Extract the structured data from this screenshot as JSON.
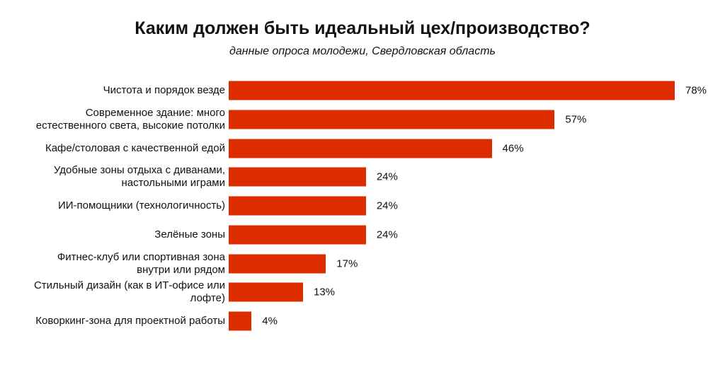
{
  "chart_data": {
    "type": "bar",
    "orientation": "horizontal",
    "title": "Каким должен быть идеальный цех/производство?",
    "subtitle": "данные опроса молодежи, Свердловская область",
    "categories": [
      "Чистота и порядок везде",
      "Современное здание: много\nестественного света, высокие потолки",
      "Кафе/столовая с качественной едой",
      "Удобные зоны отдыха с диванами,\nнастольными играми",
      "ИИ-помощники (технологичность)",
      "Зелёные зоны",
      "Фитнес-клуб или спортивная зона\nвнутри или рядом",
      "Стильный дизайн (как в ИТ-офисе или\nлофте)",
      "Коворкинг-зона для проектной работы"
    ],
    "values": [
      78,
      57,
      46,
      24,
      24,
      24,
      17,
      13,
      4
    ],
    "value_labels": [
      "78%",
      "57%",
      "46%",
      "24%",
      "24%",
      "24%",
      "17%",
      "13%",
      "4%"
    ],
    "color": "#dd2c00"
  }
}
